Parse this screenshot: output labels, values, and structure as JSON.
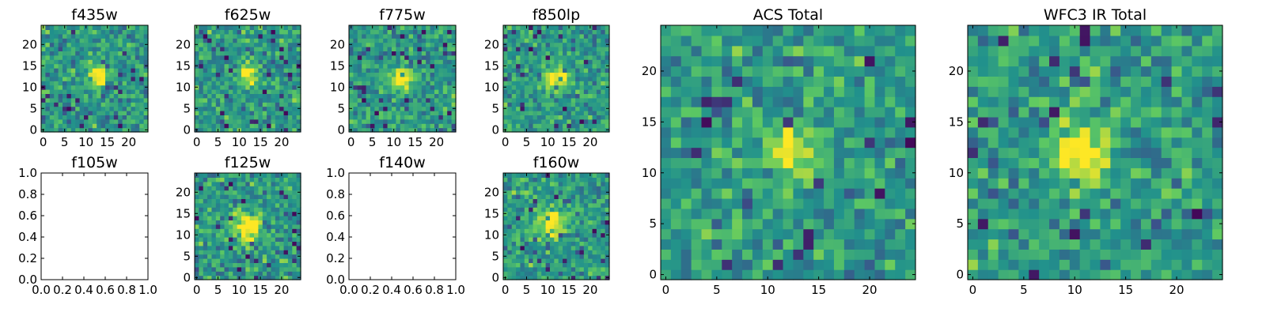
{
  "figure": {
    "background": "#ffffff"
  },
  "colormap": [
    "#440154",
    "#3b528b",
    "#21918c",
    "#5ec962",
    "#fde725"
  ],
  "chart_data": [
    {
      "id": "f435w",
      "type": "heatmap",
      "title": "f435w",
      "empty": false,
      "xticks": [
        "0",
        "5",
        "10",
        "15",
        "20"
      ],
      "yticks": [
        "0",
        "5",
        "10",
        "15",
        "20"
      ],
      "xlim": [
        -0.5,
        24.5
      ],
      "ylim": [
        -0.5,
        24.5
      ],
      "source_center": [
        13,
        13
      ],
      "source_sigma": 1.8,
      "seed": 11
    },
    {
      "id": "f625w",
      "type": "heatmap",
      "title": "f625w",
      "empty": false,
      "xticks": [
        "0",
        "5",
        "10",
        "15",
        "20"
      ],
      "yticks": [
        "0",
        "5",
        "10",
        "15",
        "20"
      ],
      "xlim": [
        -0.5,
        24.5
      ],
      "ylim": [
        -0.5,
        24.5
      ],
      "source_center": [
        12,
        13
      ],
      "source_sigma": 1.6,
      "seed": 23
    },
    {
      "id": "f775w",
      "type": "heatmap",
      "title": "f775w",
      "empty": false,
      "xticks": [
        "0",
        "5",
        "10",
        "15",
        "20"
      ],
      "yticks": [
        "0",
        "5",
        "10",
        "15",
        "20"
      ],
      "xlim": [
        -0.5,
        24.5
      ],
      "ylim": [
        -0.5,
        24.5
      ],
      "source_center": [
        12,
        12
      ],
      "source_sigma": 1.8,
      "seed": 37
    },
    {
      "id": "f850lp",
      "type": "heatmap",
      "title": "f850lp",
      "empty": false,
      "xticks": [
        "0",
        "5",
        "10",
        "15",
        "20"
      ],
      "yticks": [
        "0",
        "5",
        "10",
        "15",
        "20"
      ],
      "xlim": [
        -0.5,
        24.5
      ],
      "ylim": [
        -0.5,
        24.5
      ],
      "source_center": [
        12,
        12
      ],
      "source_sigma": 2.0,
      "seed": 41
    },
    {
      "id": "f105w",
      "type": "empty",
      "title": "f105w",
      "empty": true,
      "xticks": [
        "0.0",
        "0.2",
        "0.4",
        "0.6",
        "0.8",
        "1.0"
      ],
      "yticks": [
        "0.0",
        "0.2",
        "0.4",
        "0.6",
        "0.8",
        "1.0"
      ],
      "xlim": [
        0,
        1
      ],
      "ylim": [
        0,
        1
      ]
    },
    {
      "id": "f125w",
      "type": "heatmap",
      "title": "f125w",
      "empty": false,
      "xticks": [
        "0",
        "5",
        "10",
        "15",
        "20"
      ],
      "yticks": [
        "0",
        "5",
        "10",
        "15",
        "20"
      ],
      "xlim": [
        -0.5,
        24.5
      ],
      "ylim": [
        -0.5,
        24.5
      ],
      "source_center": [
        12,
        12
      ],
      "source_sigma": 2.3,
      "seed": 53
    },
    {
      "id": "f140w",
      "type": "empty",
      "title": "f140w",
      "empty": true,
      "xticks": [
        "0.0",
        "0.2",
        "0.4",
        "0.6",
        "0.8",
        "1.0"
      ],
      "yticks": [
        "0.0",
        "0.2",
        "0.4",
        "0.6",
        "0.8",
        "1.0"
      ],
      "xlim": [
        0,
        1
      ],
      "ylim": [
        0,
        1
      ]
    },
    {
      "id": "f160w",
      "type": "heatmap",
      "title": "f160w",
      "empty": false,
      "xticks": [
        "0",
        "5",
        "10",
        "15",
        "20"
      ],
      "yticks": [
        "0",
        "5",
        "10",
        "15",
        "20"
      ],
      "xlim": [
        -0.5,
        24.5
      ],
      "ylim": [
        -0.5,
        24.5
      ],
      "source_center": [
        11,
        13
      ],
      "source_sigma": 2.3,
      "seed": 67
    },
    {
      "id": "acs_total",
      "type": "heatmap",
      "title": "ACS Total",
      "empty": false,
      "xticks": [
        "0",
        "5",
        "10",
        "15",
        "20"
      ],
      "yticks": [
        "0",
        "5",
        "10",
        "15",
        "20"
      ],
      "xlim": [
        -0.5,
        24.5
      ],
      "ylim": [
        -0.5,
        24.5
      ],
      "source_center": [
        12,
        12
      ],
      "source_sigma": 1.7,
      "seed": 79
    },
    {
      "id": "wfc3_total",
      "type": "heatmap",
      "title": "WFC3 IR Total",
      "empty": false,
      "xticks": [
        "0",
        "5",
        "10",
        "15",
        "20"
      ],
      "yticks": [
        "0",
        "5",
        "10",
        "15",
        "20"
      ],
      "xlim": [
        -0.5,
        24.5
      ],
      "ylim": [
        -0.5,
        24.5
      ],
      "source_center": [
        11,
        12
      ],
      "source_sigma": 2.2,
      "seed": 97
    }
  ]
}
